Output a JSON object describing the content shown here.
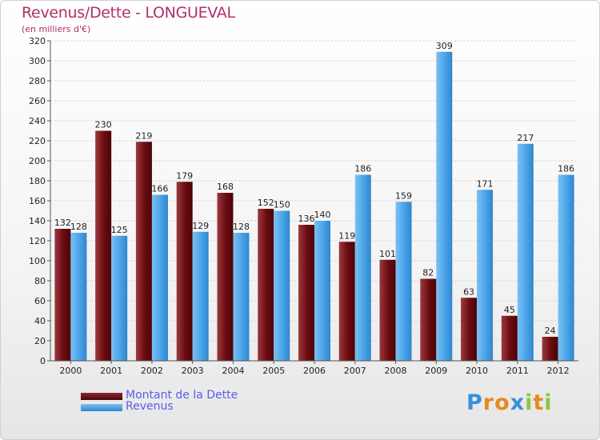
{
  "header": {
    "title": "Revenus/Dette - LONGUEVAL",
    "subtitle": "(en milliers d'€)"
  },
  "legend": {
    "items": [
      {
        "label": "Montant de la Dette",
        "color": "#6b0a0f"
      },
      {
        "label": "Revenus",
        "color": "#4aa3e8"
      }
    ]
  },
  "brand": {
    "text": "Proxiti",
    "letters": [
      {
        "ch": "P",
        "color": "#3a8fd8"
      },
      {
        "ch": "r",
        "color": "#e58a1f"
      },
      {
        "ch": "o",
        "color": "#e58a1f"
      },
      {
        "ch": "x",
        "color": "#3a8fd8"
      },
      {
        "ch": "i",
        "color": "#8cc63f"
      },
      {
        "ch": "t",
        "color": "#e58a1f"
      },
      {
        "ch": "i",
        "color": "#8cc63f"
      }
    ]
  },
  "chart_data": {
    "type": "bar",
    "title": "Revenus/Dette - LONGUEVAL",
    "subtitle": "(en milliers d'€)",
    "categories": [
      "2000",
      "2001",
      "2002",
      "2003",
      "2004",
      "2005",
      "2006",
      "2007",
      "2008",
      "2009",
      "2010",
      "2011",
      "2012"
    ],
    "series": [
      {
        "name": "Montant de la Dette",
        "color": "#6b0a0f",
        "values": [
          132,
          230,
          219,
          179,
          168,
          152,
          136,
          119,
          101,
          82,
          63,
          45,
          24
        ]
      },
      {
        "name": "Revenus",
        "color": "#4aa3e8",
        "values": [
          128,
          125,
          166,
          129,
          128,
          150,
          140,
          186,
          159,
          309,
          171,
          217,
          186
        ]
      }
    ],
    "ylim": [
      0,
      320
    ],
    "yticks": [
      0,
      20,
      40,
      60,
      80,
      100,
      120,
      140,
      160,
      180,
      200,
      220,
      240,
      260,
      280,
      300,
      320
    ],
    "grid": true,
    "legend_position": "bottom-left"
  }
}
